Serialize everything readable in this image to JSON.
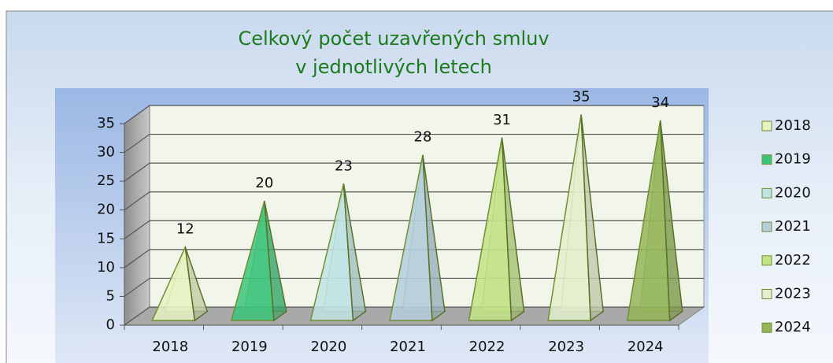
{
  "chart_data": {
    "type": "pyramid",
    "title": [
      "Celkový počet uzavřených smluv",
      "v jednotlivých letech"
    ],
    "categories": [
      "2018",
      "2019",
      "2020",
      "2021",
      "2022",
      "2023",
      "2024"
    ],
    "values": [
      12,
      20,
      23,
      28,
      31,
      35,
      34
    ],
    "colors": [
      "#e6f2c2",
      "#3cc47a",
      "#bfe3e3",
      "#b4cedc",
      "#c2e386",
      "#e3eecb",
      "#93b558"
    ],
    "ylim": [
      0,
      35
    ],
    "yticks": [
      0,
      5,
      10,
      15,
      20,
      25,
      30,
      35
    ],
    "grid": true,
    "legend": "right"
  }
}
